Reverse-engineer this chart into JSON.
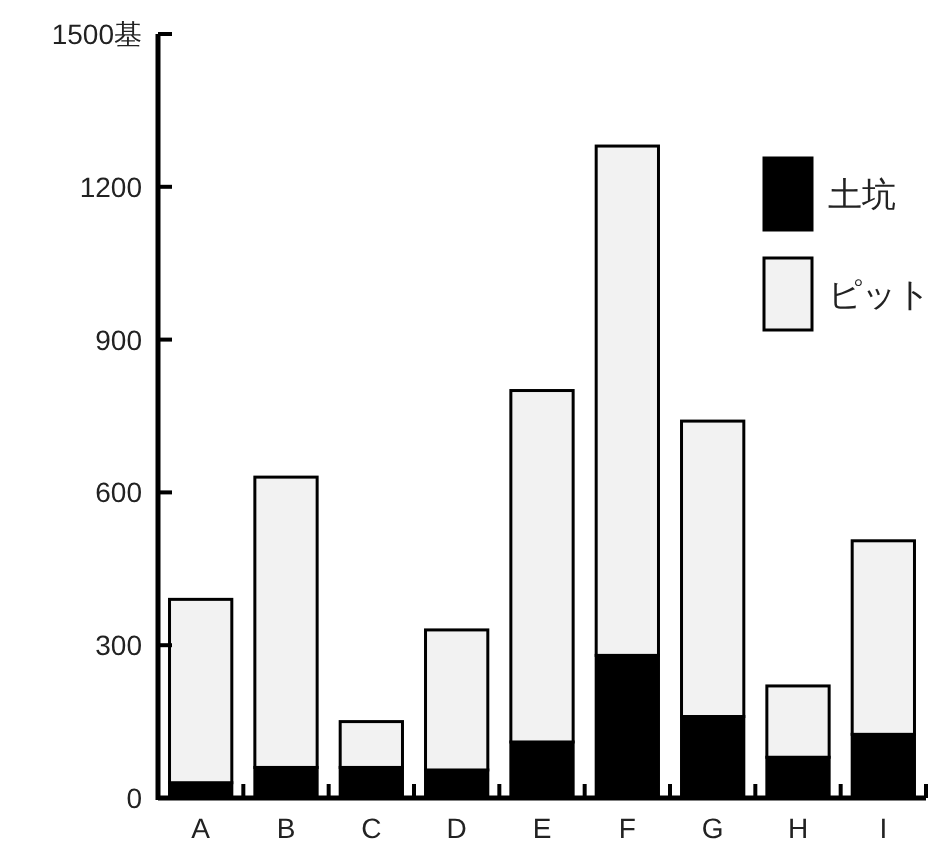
{
  "chart_data": {
    "type": "bar",
    "stacked": true,
    "categories": [
      "A",
      "B",
      "C",
      "D",
      "E",
      "F",
      "G",
      "H",
      "I"
    ],
    "series": [
      {
        "name": "土坑",
        "color": "#000000",
        "values": [
          30,
          60,
          60,
          55,
          110,
          280,
          160,
          80,
          125
        ]
      },
      {
        "name": "ピット",
        "color": "#f2f2f2",
        "values": [
          360,
          570,
          90,
          275,
          690,
          1000,
          580,
          140,
          380
        ]
      }
    ],
    "ylim": [
      0,
      1500
    ],
    "yticks": [
      0,
      300,
      600,
      900,
      1200,
      {
        "value": 1500,
        "label": "1500基"
      }
    ],
    "grid": false,
    "legend": "top right"
  }
}
